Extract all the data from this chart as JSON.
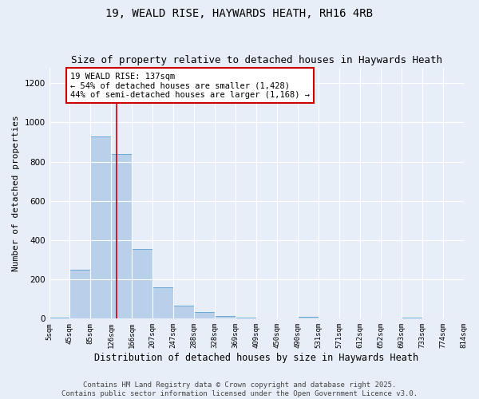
{
  "title": "19, WEALD RISE, HAYWARDS HEATH, RH16 4RB",
  "subtitle": "Size of property relative to detached houses in Haywards Heath",
  "xlabel": "Distribution of detached houses by size in Haywards Heath",
  "ylabel": "Number of detached properties",
  "bin_edges": [
    5,
    45,
    85,
    126,
    166,
    207,
    247,
    288,
    328,
    369,
    409,
    450,
    490,
    531,
    571,
    612,
    652,
    693,
    733,
    774,
    814
  ],
  "bar_heights": [
    5,
    248,
    930,
    840,
    355,
    160,
    65,
    35,
    15,
    5,
    1,
    0,
    8,
    0,
    0,
    0,
    0,
    5,
    0,
    0
  ],
  "bar_color": "#b8d0ea",
  "bar_edge_color": "#6aaad4",
  "property_line_x": 137,
  "property_line_color": "#cc0000",
  "annotation_text": "19 WEALD RISE: 137sqm\n← 54% of detached houses are smaller (1,428)\n44% of semi-detached houses are larger (1,168) →",
  "annotation_box_color": "#ffffff",
  "annotation_box_edge_color": "#cc0000",
  "ylim": [
    0,
    1280
  ],
  "yticks": [
    0,
    200,
    400,
    600,
    800,
    1000,
    1200
  ],
  "tick_labels": [
    "5sqm",
    "45sqm",
    "85sqm",
    "126sqm",
    "166sqm",
    "207sqm",
    "247sqm",
    "288sqm",
    "328sqm",
    "369sqm",
    "409sqm",
    "450sqm",
    "490sqm",
    "531sqm",
    "571sqm",
    "612sqm",
    "652sqm",
    "693sqm",
    "733sqm",
    "774sqm",
    "814sqm"
  ],
  "background_color": "#e8eef8",
  "grid_color": "#ffffff",
  "footer_text": "Contains HM Land Registry data © Crown copyright and database right 2025.\nContains public sector information licensed under the Open Government Licence v3.0.",
  "title_fontsize": 10,
  "subtitle_fontsize": 9,
  "xlabel_fontsize": 8.5,
  "ylabel_fontsize": 8,
  "annotation_fontsize": 7.5,
  "footer_fontsize": 6.5
}
